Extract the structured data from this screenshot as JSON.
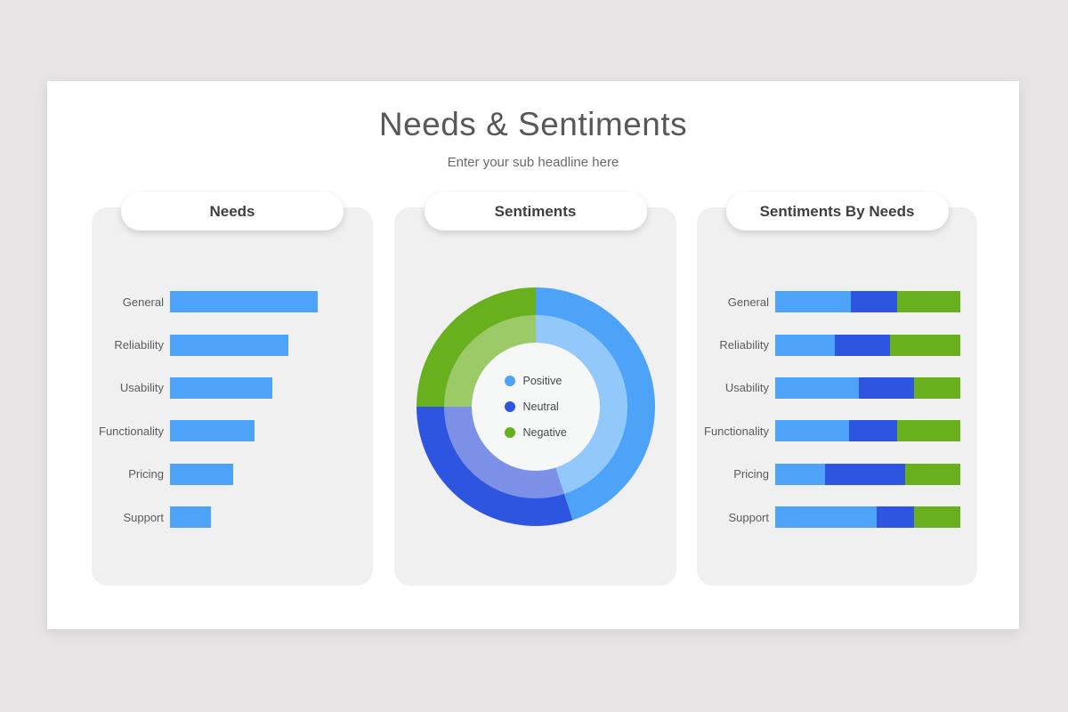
{
  "slide": {
    "title": "Needs & Sentiments",
    "subtitle": "Enter your sub headline here"
  },
  "panels": [
    {
      "title": "Needs"
    },
    {
      "title": "Sentiments"
    },
    {
      "title": "Sentiments By Needs"
    }
  ],
  "colors": {
    "positive": "#4DA3F8",
    "neutral": "#2D55DF",
    "negative": "#69B01E",
    "positive_light": "#92C8FA",
    "neutral_light": "#7D90E8",
    "negative_light": "#9CCA66",
    "panel_bg": "#F0F0F1",
    "slide_bg": "#FFFFFF",
    "page_bg": "#E7E5E6",
    "donut_hole": "#F6F7F7"
  },
  "chart_data": [
    {
      "type": "bar",
      "orientation": "horizontal",
      "title": "Needs",
      "categories": [
        "General",
        "Reliability",
        "Usability",
        "Functionality",
        "Pricing",
        "Support"
      ],
      "values": [
        100,
        80,
        69,
        57,
        43,
        28
      ],
      "series_name": "Needs (relative, % of max)",
      "color": "positive",
      "grid": false,
      "axis_labels": false
    },
    {
      "type": "pie",
      "subtype": "double-ring-donut",
      "title": "Sentiments",
      "legend": [
        "Positive",
        "Neutral",
        "Negative"
      ],
      "values": [
        45,
        30,
        25
      ],
      "legend_position": "center",
      "ring_color_keys": [
        "positive",
        "neutral",
        "negative"
      ],
      "inner_ring_color_keys": [
        "positive_light",
        "neutral_light",
        "negative_light"
      ]
    },
    {
      "type": "bar",
      "subtype": "stacked-horizontal-100pct",
      "title": "Sentiments By Needs",
      "categories": [
        "General",
        "Reliability",
        "Usability",
        "Functionality",
        "Pricing",
        "Support"
      ],
      "series": [
        {
          "name": "Positive",
          "color": "positive",
          "values": [
            41,
            32,
            45,
            40,
            27,
            55
          ]
        },
        {
          "name": "Neutral",
          "color": "neutral",
          "values": [
            25,
            30,
            30,
            26,
            43,
            20
          ]
        },
        {
          "name": "Negative",
          "color": "negative",
          "values": [
            34,
            38,
            25,
            34,
            30,
            25
          ]
        }
      ],
      "grid": false,
      "axis_labels": false
    }
  ]
}
